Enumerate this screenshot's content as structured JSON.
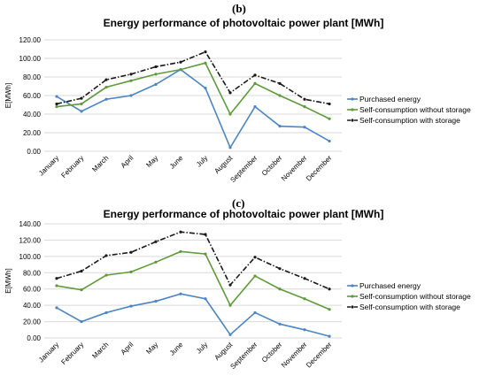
{
  "panels": {
    "b_label": "(b)",
    "c_label": "(c)"
  },
  "colors": {
    "purchased": "#4a86c5",
    "without_storage": "#5e9b3a",
    "with_storage": "#1a1a1a",
    "grid": "#d9d9d9"
  },
  "chart_data": [
    {
      "type": "line",
      "title": "Energy performance of photovoltaic power  plant [MWh]",
      "ylabel": "E[MWh]",
      "xlabel": "",
      "ylim": [
        0,
        120
      ],
      "yticks": [
        "0.00",
        "20.00",
        "40.00",
        "60.00",
        "80.00",
        "100.00",
        "120.00"
      ],
      "grid": "horizontal",
      "legend_position": "right",
      "categories": [
        "January",
        "February",
        "March",
        "April",
        "May",
        "June",
        "July",
        "August",
        "September",
        "October",
        "November",
        "December"
      ],
      "series": [
        {
          "name": "Purchased energy",
          "style": "solid",
          "color": "#4a86c5",
          "values": [
            59,
            43,
            56,
            60,
            72,
            88,
            68,
            4,
            48,
            27,
            26,
            11
          ]
        },
        {
          "name": "Self-consumption without storage",
          "style": "solid",
          "color": "#5e9b3a",
          "values": [
            48,
            51,
            69,
            76,
            83,
            88,
            95,
            40,
            73,
            60,
            48,
            35
          ]
        },
        {
          "name": "Self-consumption with storage",
          "style": "dashdot",
          "color": "#1a1a1a",
          "values": [
            51,
            57,
            77,
            83,
            91,
            96,
            107,
            63,
            82,
            73,
            56,
            51
          ]
        }
      ]
    },
    {
      "type": "line",
      "title": "Energy performance of photovoltaic power  plant [MWh]",
      "ylabel": "E[MWh]",
      "xlabel": "",
      "ylim": [
        0,
        140
      ],
      "yticks": [
        "0.00",
        "20.00",
        "40.00",
        "60.00",
        "80.00",
        "100.00",
        "120.00",
        "140.00"
      ],
      "grid": "horizontal",
      "legend_position": "right",
      "categories": [
        "January",
        "February",
        "March",
        "April",
        "May",
        "June",
        "July",
        "August",
        "September",
        "October",
        "November",
        "December"
      ],
      "series": [
        {
          "name": "Purchased energy",
          "style": "solid",
          "color": "#4a86c5",
          "values": [
            37,
            20,
            31,
            39,
            45,
            54,
            48,
            4,
            31,
            17,
            10,
            2
          ]
        },
        {
          "name": "Self-consumption without storage",
          "style": "solid",
          "color": "#5e9b3a",
          "values": [
            64,
            59,
            77,
            81,
            93,
            106,
            103,
            40,
            76,
            60,
            48,
            35
          ]
        },
        {
          "name": "Self-consumption with storage",
          "style": "dashdot",
          "color": "#1a1a1a",
          "values": [
            73,
            82,
            101,
            105,
            118,
            130,
            127,
            65,
            99,
            85,
            73,
            60
          ]
        }
      ]
    }
  ]
}
